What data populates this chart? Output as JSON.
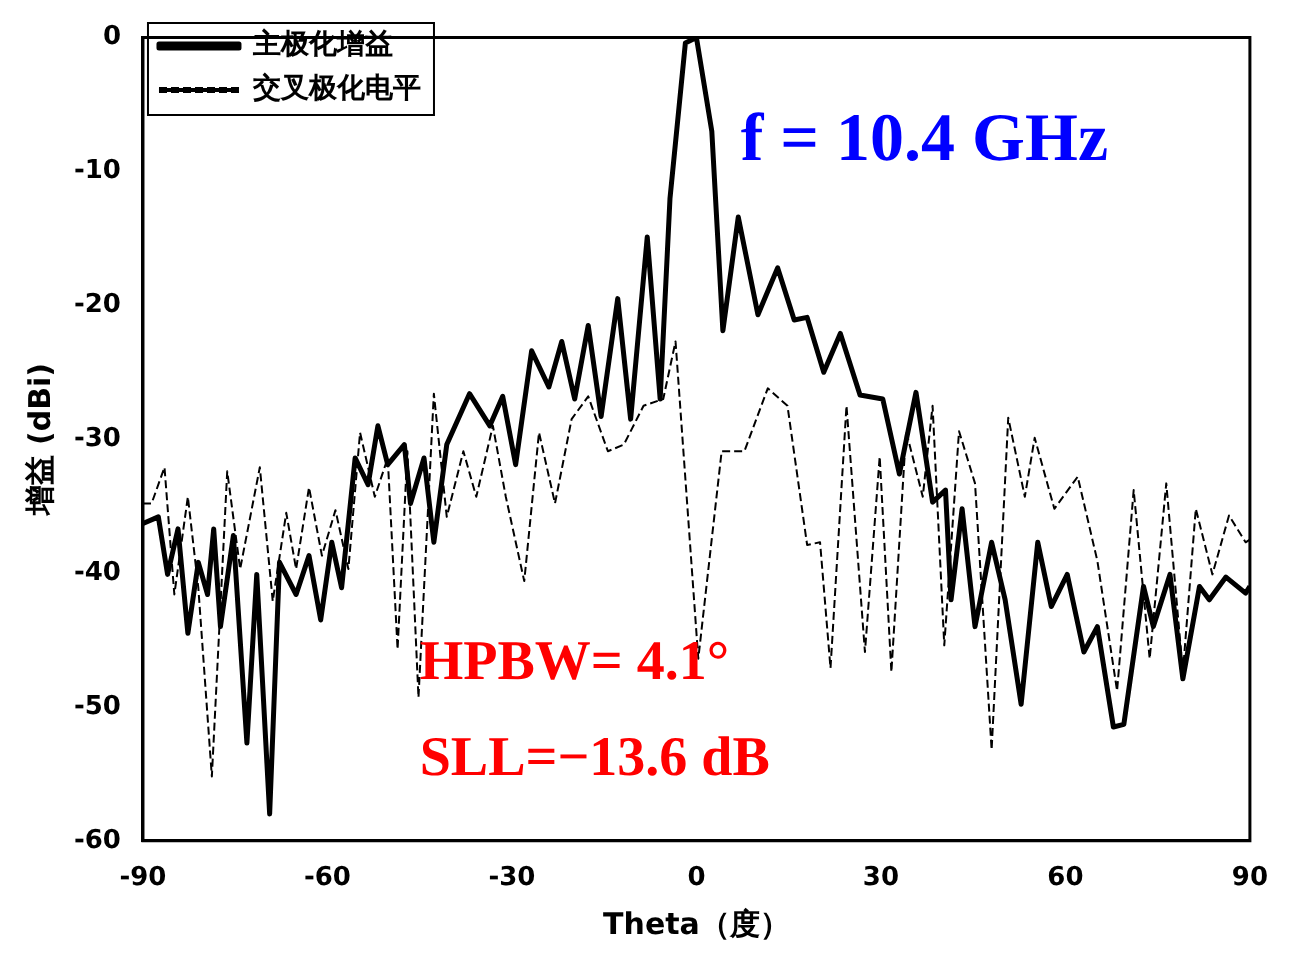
{
  "chart_data": {
    "type": "line",
    "xlabel": "Theta（度）",
    "ylabel": "增益 (dBi)",
    "xlim": [
      -90,
      90
    ],
    "xticks": [
      -90,
      -60,
      -30,
      0,
      30,
      60,
      90
    ],
    "ylim": [
      -60,
      0
    ],
    "yticks": [
      -60,
      -50,
      -40,
      -30,
      -20,
      -10,
      0
    ],
    "grid": false,
    "legend": "top left",
    "marker": "none",
    "annotations": [
      "f = 10.4 GHz",
      "HPBW= 4.1°",
      "SLL=−13.6 dB"
    ],
    "series": [
      {
        "name": "主极化增益",
        "color": "#000000",
        "line_style": "solid",
        "x": [
          -90,
          -87.5,
          -86,
          -84.3,
          -82.7,
          -81,
          -79.5,
          -78.5,
          -77.4,
          -75.3,
          -73.1,
          -71.5,
          -69.4,
          -67.8,
          -65.1,
          -63,
          -61.1,
          -59.3,
          -57.7,
          -55.5,
          -53.4,
          -51.8,
          -50.2,
          -47.5,
          -46.5,
          -44.3,
          -42.7,
          -40.6,
          -36.9,
          -33.6,
          -31.5,
          -29.4,
          -26.8,
          -24,
          -21.9,
          -19.8,
          -17.6,
          -15.5,
          -12.8,
          -10.7,
          -8,
          -5.9,
          -4.3,
          -1.8,
          0,
          2.5,
          4.3,
          6.8,
          10,
          13.2,
          15.9,
          18,
          20.7,
          23.4,
          26.6,
          30.3,
          33,
          35.7,
          38.4,
          40.5,
          41.4,
          43.2,
          45.3,
          48,
          50.2,
          52.8,
          55.5,
          57.7,
          60.3,
          63,
          65.2,
          67.8,
          69.5,
          72.7,
          74.3,
          77,
          79.1,
          81.8,
          83.4,
          86.1,
          89.3,
          90
        ],
        "values": [
          -36.3,
          -35.8,
          -40.1,
          -36.7,
          -44.5,
          -39.2,
          -41.6,
          -36.7,
          -44,
          -37.2,
          -52.7,
          -40.1,
          -58,
          -39.2,
          -41.6,
          -38.7,
          -43.5,
          -37.7,
          -41.1,
          -31.4,
          -33.4,
          -29,
          -31.9,
          -30.4,
          -34.8,
          -31.4,
          -37.7,
          -30.4,
          -26.6,
          -29,
          -26.8,
          -31.9,
          -23.4,
          -26.1,
          -22.7,
          -27,
          -21.5,
          -28.3,
          -19.5,
          -28.5,
          -14.9,
          -27,
          -12,
          -0.4,
          0,
          -7,
          -21.9,
          -13.4,
          -20.7,
          -17.2,
          -21.1,
          -20.9,
          -25,
          -22.1,
          -26.7,
          -27,
          -32.6,
          -26.5,
          -34.7,
          -33.8,
          -42,
          -35.2,
          -44,
          -37.7,
          -42,
          -49.8,
          -37.7,
          -42.5,
          -40.1,
          -45.9,
          -44,
          -51.5,
          -51.3,
          -41,
          -44,
          -40.1,
          -47.9,
          -41,
          -42,
          -40.3,
          -41.5,
          -41
        ]
      },
      {
        "name": "交叉极化电平",
        "color": "#000000",
        "line_style": "dashed",
        "x": [
          -90,
          -88.6,
          -86.5,
          -84.9,
          -82.7,
          -81,
          -78.8,
          -76.3,
          -74.2,
          -71,
          -68.9,
          -66.7,
          -65.1,
          -63,
          -60.9,
          -58.7,
          -56.6,
          -54.7,
          -52.3,
          -50.2,
          -48.6,
          -47,
          -45.2,
          -42.7,
          -40.6,
          -37.9,
          -35.8,
          -33.1,
          -31,
          -28,
          -25.6,
          -23,
          -20.3,
          -17.6,
          -14.4,
          -11.8,
          -8.6,
          -5.4,
          -3.4,
          0.3,
          4.1,
          7.8,
          11.6,
          14.8,
          18,
          20.1,
          21.8,
          24.4,
          27.4,
          29.8,
          31.7,
          34.1,
          36.8,
          38.4,
          40.3,
          42.7,
          45.3,
          48,
          50.7,
          53.4,
          55,
          58.2,
          62,
          65.2,
          68.4,
          71.1,
          73.7,
          76.4,
          79.1,
          81.2,
          83.9,
          86.6,
          89.3,
          90
        ],
        "values": [
          -34.8,
          -34.8,
          -32.1,
          -41.6,
          -34.3,
          -41.1,
          -55.2,
          -32.4,
          -39.7,
          -32.1,
          -42.1,
          -35.5,
          -39.7,
          -33.6,
          -38.7,
          -35.3,
          -39.7,
          -29.5,
          -34.3,
          -31.4,
          -45.7,
          -30.9,
          -49.3,
          -26.6,
          -35.8,
          -30.9,
          -34.3,
          -29,
          -34.3,
          -40.6,
          -29.5,
          -34.8,
          -28.5,
          -26.8,
          -30.9,
          -30.4,
          -27.5,
          -27,
          -22.7,
          -46.4,
          -30.9,
          -30.9,
          -26.2,
          -27.5,
          -37.9,
          -37.7,
          -47.1,
          -27.5,
          -45.9,
          -31.3,
          -47.4,
          -29.4,
          -34.3,
          -27.5,
          -45.4,
          -29.4,
          -33.3,
          -53.2,
          -28.4,
          -34.3,
          -29.9,
          -35.2,
          -32.8,
          -39.1,
          -48.8,
          -33.8,
          -46.4,
          -33.3,
          -47.4,
          -35.2,
          -40.1,
          -35.7,
          -37.7,
          -37.5
        ]
      }
    ]
  }
}
